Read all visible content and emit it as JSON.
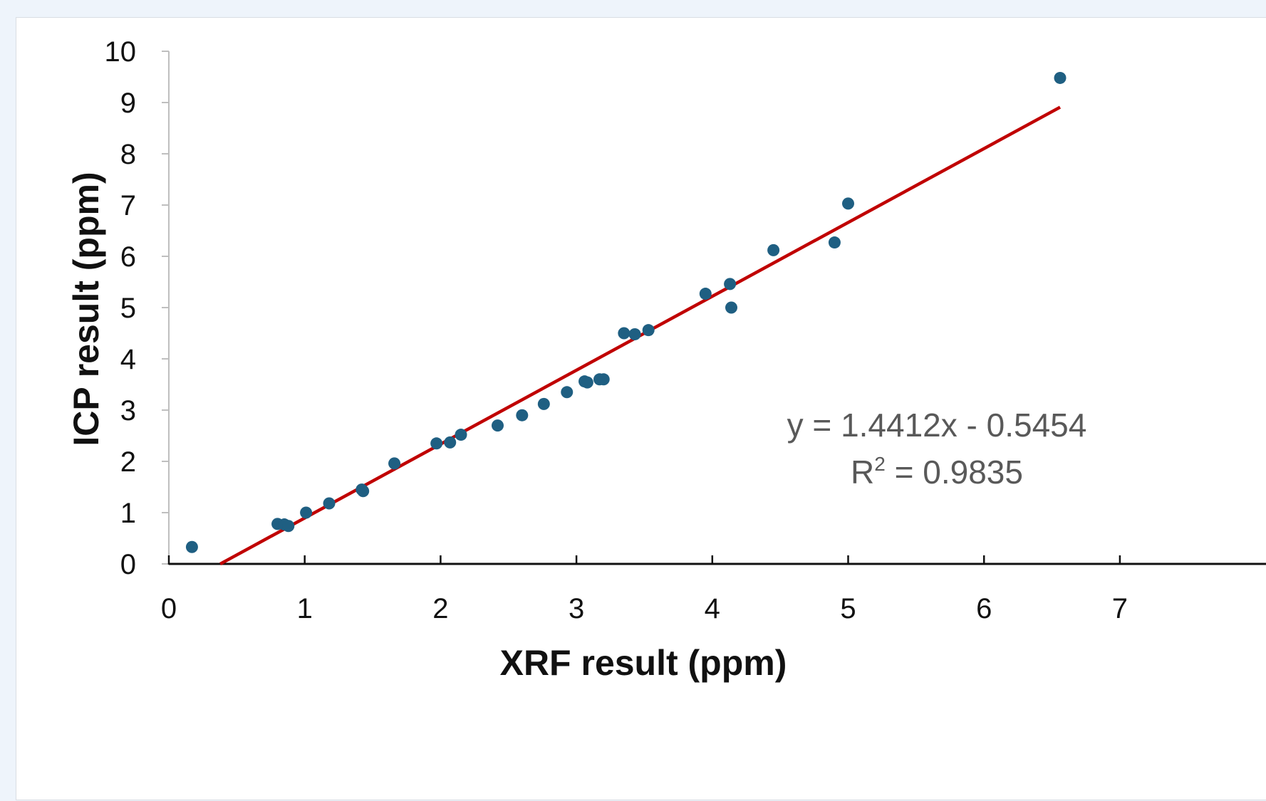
{
  "chart_data": {
    "type": "scatter",
    "xlabel": "XRF result (ppm)",
    "ylabel": "ICP result (ppm)",
    "xlim": [
      0,
      7
    ],
    "ylim": [
      0,
      10
    ],
    "x_ticks": [
      "0",
      "1",
      "2",
      "3",
      "4",
      "5",
      "6",
      "7"
    ],
    "y_ticks": [
      "0",
      "1",
      "2",
      "3",
      "4",
      "5",
      "6",
      "7",
      "8",
      "9",
      "10"
    ],
    "grid": false,
    "legend": "none",
    "point_color": "#1f5f82",
    "trendline_color": "#c00000",
    "series": [
      {
        "points": [
          {
            "x": 0.17,
            "y": 0.33
          },
          {
            "x": 0.8,
            "y": 0.78
          },
          {
            "x": 0.85,
            "y": 0.77
          },
          {
            "x": 0.88,
            "y": 0.74
          },
          {
            "x": 1.01,
            "y": 1.0
          },
          {
            "x": 1.18,
            "y": 1.18
          },
          {
            "x": 1.42,
            "y": 1.45
          },
          {
            "x": 1.43,
            "y": 1.42
          },
          {
            "x": 1.66,
            "y": 1.96
          },
          {
            "x": 1.97,
            "y": 2.35
          },
          {
            "x": 2.07,
            "y": 2.37
          },
          {
            "x": 2.15,
            "y": 2.52
          },
          {
            "x": 2.42,
            "y": 2.7
          },
          {
            "x": 2.6,
            "y": 2.9
          },
          {
            "x": 2.76,
            "y": 3.12
          },
          {
            "x": 2.93,
            "y": 3.35
          },
          {
            "x": 3.06,
            "y": 3.56
          },
          {
            "x": 3.08,
            "y": 3.54
          },
          {
            "x": 3.17,
            "y": 3.6
          },
          {
            "x": 3.2,
            "y": 3.6
          },
          {
            "x": 3.35,
            "y": 4.5
          },
          {
            "x": 3.43,
            "y": 4.48
          },
          {
            "x": 3.53,
            "y": 4.56
          },
          {
            "x": 3.95,
            "y": 5.27
          },
          {
            "x": 4.13,
            "y": 5.46
          },
          {
            "x": 4.14,
            "y": 5.0
          },
          {
            "x": 4.45,
            "y": 6.12
          },
          {
            "x": 4.9,
            "y": 6.27
          },
          {
            "x": 5.0,
            "y": 7.03
          },
          {
            "x": 6.56,
            "y": 9.48
          }
        ]
      }
    ],
    "trendline": {
      "slope": 1.4412,
      "intercept": -0.5454,
      "x_range": [
        0.378,
        6.56
      ],
      "equation": "y = 1.4412x - 0.5454",
      "r2_prefix": "R",
      "r2_sup": "2",
      "r2_value": " = 0.9835"
    }
  }
}
